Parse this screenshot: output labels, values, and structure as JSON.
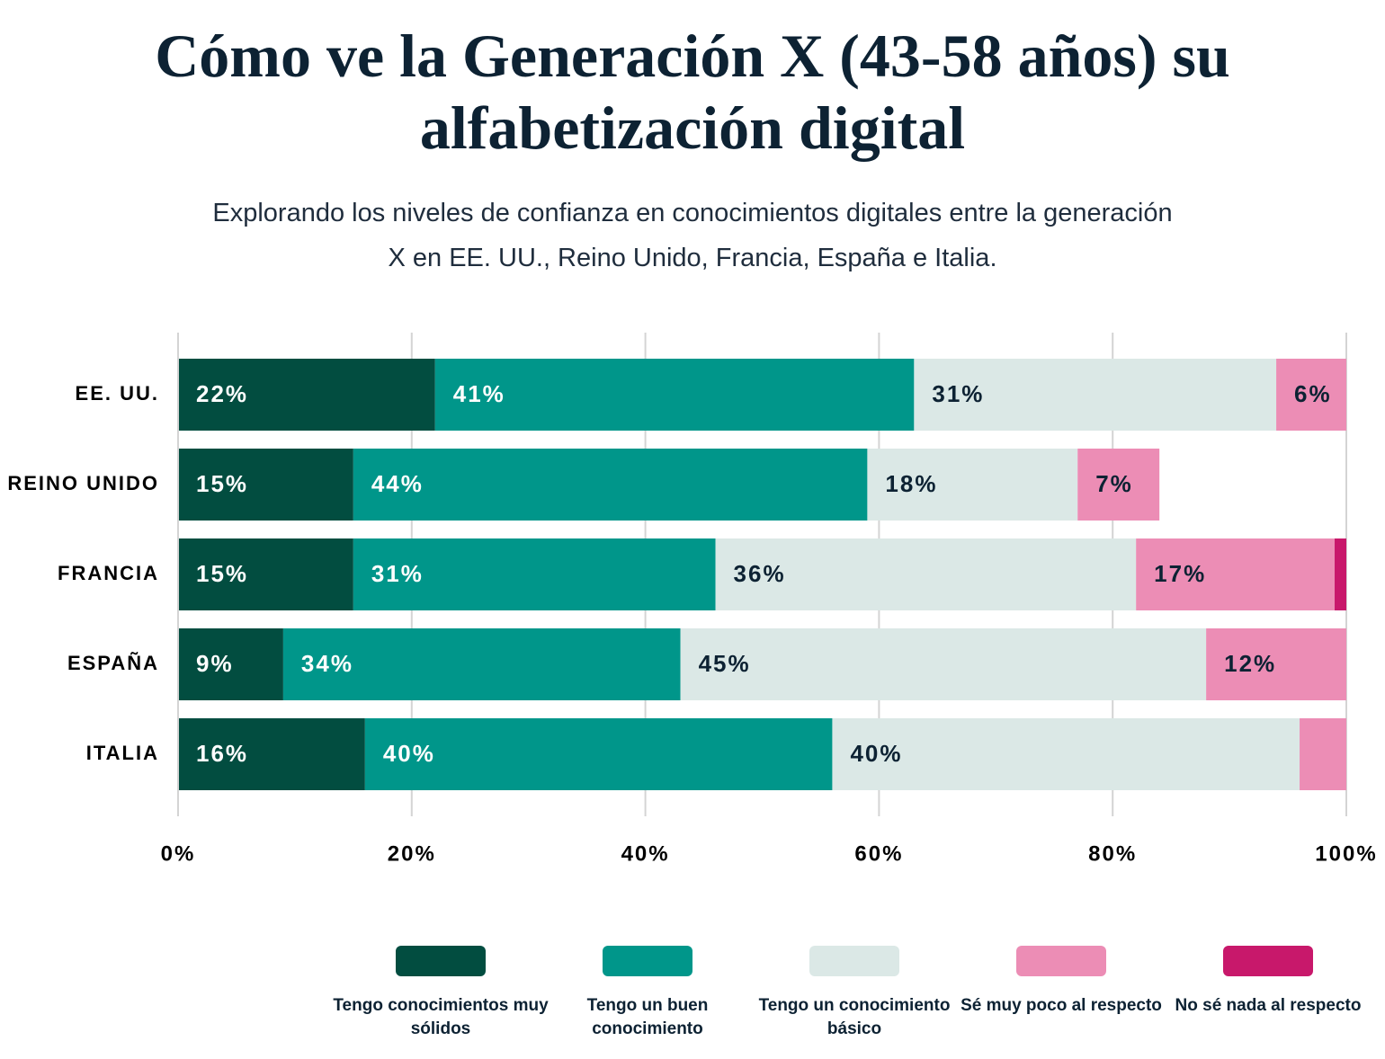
{
  "chart_data": {
    "type": "stacked-bar-horizontal",
    "title": "Cómo ve la Generación X (43-58 años) su alfabetización digital",
    "subtitle": "Explorando los niveles de confianza en conocimientos digitales entre la generación X en EE. UU., Reino Unido, Francia, España e Italia.",
    "categories": [
      "EE. UU.",
      "REINO UNIDO",
      "FRANCIA",
      "ESPAÑA",
      "ITALIA"
    ],
    "series": [
      {
        "name": "Tengo conocimientos muy sólidos",
        "color": "#024d40",
        "values": [
          22,
          15,
          15,
          9,
          16
        ],
        "value_labels": [
          "22%",
          "15%",
          "15%",
          "9%",
          "16%"
        ]
      },
      {
        "name": "Tengo un buen conocimiento",
        "color": "#00968a",
        "values": [
          41,
          44,
          31,
          34,
          40
        ],
        "value_labels": [
          "41%",
          "44%",
          "31%",
          "34%",
          "40%"
        ]
      },
      {
        "name": "Tengo un conocimiento básico",
        "color": "#dbe8e6",
        "values": [
          31,
          18,
          36,
          45,
          40
        ],
        "value_labels": [
          "31%",
          "18%",
          "36%",
          "45%",
          "40%"
        ]
      },
      {
        "name": "Sé muy poco al respecto",
        "color": "#ec8db5",
        "values": [
          6,
          7,
          17,
          12,
          4
        ],
        "value_labels": [
          "6%",
          "7%",
          "17%",
          "12%",
          null
        ]
      },
      {
        "name": "No sé nada al respecto",
        "color": "#c8186b",
        "values": [
          0,
          0,
          1,
          0,
          0
        ],
        "value_labels": [
          null,
          null,
          null,
          null,
          null
        ]
      }
    ],
    "xlim": [
      0,
      100
    ],
    "xticks": [
      {
        "value": 0,
        "label": "0%"
      },
      {
        "value": 20,
        "label": "20%"
      },
      {
        "value": 40,
        "label": "40%"
      },
      {
        "value": 60,
        "label": "60%"
      },
      {
        "value": 80,
        "label": "80%"
      },
      {
        "value": 100,
        "label": "100%"
      }
    ],
    "grid": true
  }
}
